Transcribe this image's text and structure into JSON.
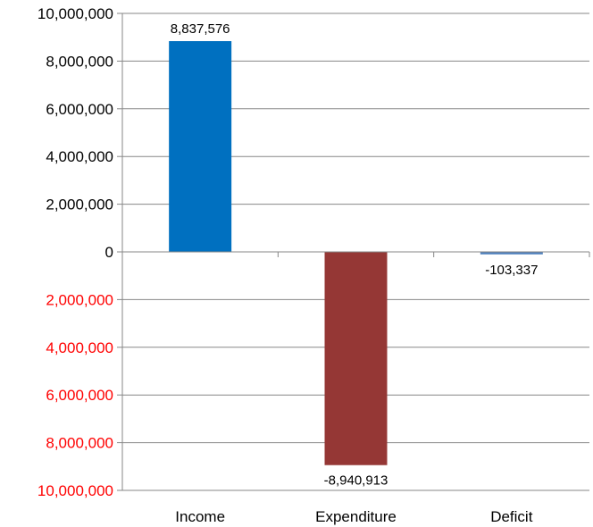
{
  "chart_data": {
    "type": "bar",
    "categories": [
      "Income",
      "Expenditure",
      "Deficit"
    ],
    "values": [
      8837576,
      -8940913,
      -103337
    ],
    "data_labels": [
      "8,837,576",
      "-8,940,913",
      "-103,337"
    ],
    "bar_colors": [
      "#0070C0",
      "#953735",
      "#4F81BD"
    ],
    "ylim": [
      -10000000,
      10000000
    ],
    "y_ticks": [
      10000000,
      8000000,
      6000000,
      4000000,
      2000000,
      0,
      -2000000,
      -4000000,
      -6000000,
      -8000000,
      -10000000
    ],
    "y_tick_labels": [
      "10,000,000",
      "8,000,000",
      "6,000,000",
      "4,000,000",
      "2,000,000",
      "0",
      "2,000,000",
      "4,000,000",
      "6,000,000",
      "8,000,000",
      "10,000,000"
    ],
    "positive_tick_color": "#000000",
    "negative_tick_color": "#FF0000",
    "grid": true,
    "legend": false,
    "title": "",
    "xlabel": "",
    "ylabel": ""
  }
}
